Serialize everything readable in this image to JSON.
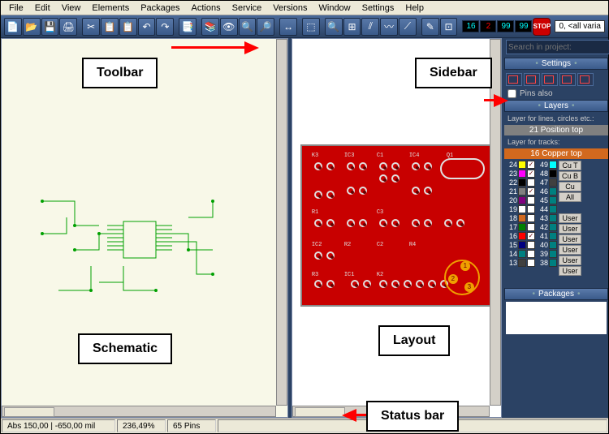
{
  "menu": [
    "File",
    "Edit",
    "View",
    "Elements",
    "Packages",
    "Actions",
    "Service",
    "Versions",
    "Window",
    "Settings",
    "Help"
  ],
  "toolbar_icons": [
    "📄",
    "📂",
    "💾",
    "🖨",
    "",
    "✂",
    "📋",
    "📋",
    "↶",
    "↷",
    "",
    "📑",
    "",
    "📚",
    "👁",
    "🔍",
    "🔎",
    "",
    "↔",
    "",
    "⬚",
    "",
    "🔍",
    "⊞",
    "⫽",
    "〰",
    "⟋",
    "",
    "✎",
    "⊡",
    ""
  ],
  "toolbar_nums": [
    {
      "val": "16",
      "cls": "cy"
    },
    {
      "val": "2",
      "cls": "red"
    },
    {
      "val": "99",
      "cls": "cy"
    },
    {
      "val": "99",
      "cls": "cy"
    }
  ],
  "stop_label": "STOP",
  "variant_text": "0, <all varia",
  "search_placeholder": "Search in project:",
  "settings_label": "Settings",
  "pins_label": "Pins also",
  "layers_label": "Layers",
  "layer_lines_label": "Layer for lines, circles etc.:",
  "layer_lines_active": "21 Position top",
  "layer_tracks_label": "Layer for tracks:",
  "layer_tracks_active": "16 Copper top",
  "layers_left": [
    {
      "n": "24",
      "c": "#ffff00",
      "chk": "✓"
    },
    {
      "n": "23",
      "c": "#ff00ff",
      "chk": "✓"
    },
    {
      "n": "22",
      "c": "#000000",
      "chk": ""
    },
    {
      "n": "21",
      "c": "#808080",
      "chk": "✓"
    },
    {
      "n": "20",
      "c": "#800080",
      "chk": ""
    },
    {
      "n": "19",
      "c": "#ffffff",
      "chk": ""
    },
    {
      "n": "18",
      "c": "#d2691e",
      "chk": ""
    },
    {
      "n": "17",
      "c": "#008000",
      "chk": ""
    },
    {
      "n": "16",
      "c": "#ff0000",
      "chk": "✓"
    },
    {
      "n": "15",
      "c": "#000080",
      "chk": ""
    },
    {
      "n": "14",
      "c": "#008080",
      "chk": ""
    },
    {
      "n": "13",
      "c": "#404040",
      "chk": ""
    }
  ],
  "layers_right": [
    {
      "n": "49",
      "c": "#00ffff"
    },
    {
      "n": "48",
      "c": "#000000"
    },
    {
      "n": "47",
      "c": "#404040"
    },
    {
      "n": "46",
      "c": "#008080"
    },
    {
      "n": "45",
      "c": "#008080"
    },
    {
      "n": "44",
      "c": "#008080"
    },
    {
      "n": "43",
      "c": "#008080"
    },
    {
      "n": "42",
      "c": "#008080"
    },
    {
      "n": "41",
      "c": "#008080"
    },
    {
      "n": "40",
      "c": "#008080"
    },
    {
      "n": "39",
      "c": "#008080"
    },
    {
      "n": "38",
      "c": "#008080"
    }
  ],
  "layer_btns": [
    "Cu T",
    "Cu B",
    "Cu",
    "All",
    "",
    "User",
    "User",
    "User",
    "User",
    "User",
    "User",
    ""
  ],
  "packages_label": "Packages",
  "statusbar": {
    "coords": "Abs 150,00 | -650,00  mil",
    "zoom": "236,49%",
    "pins": "65 Pins"
  },
  "callouts": {
    "toolbar": "Toolbar",
    "sidebar": "Sidebar",
    "schematic": "Schematic",
    "layout": "Layout",
    "statusbar": "Status bar"
  },
  "pcb_refs": [
    "K3",
    "IC3",
    "C1",
    "IC4",
    "Q1",
    "R1",
    "C3",
    "IC2",
    "C2",
    "R2",
    "R4",
    "R3",
    "IC1",
    "K2"
  ],
  "gold_pads": [
    "1",
    "2",
    "3"
  ]
}
